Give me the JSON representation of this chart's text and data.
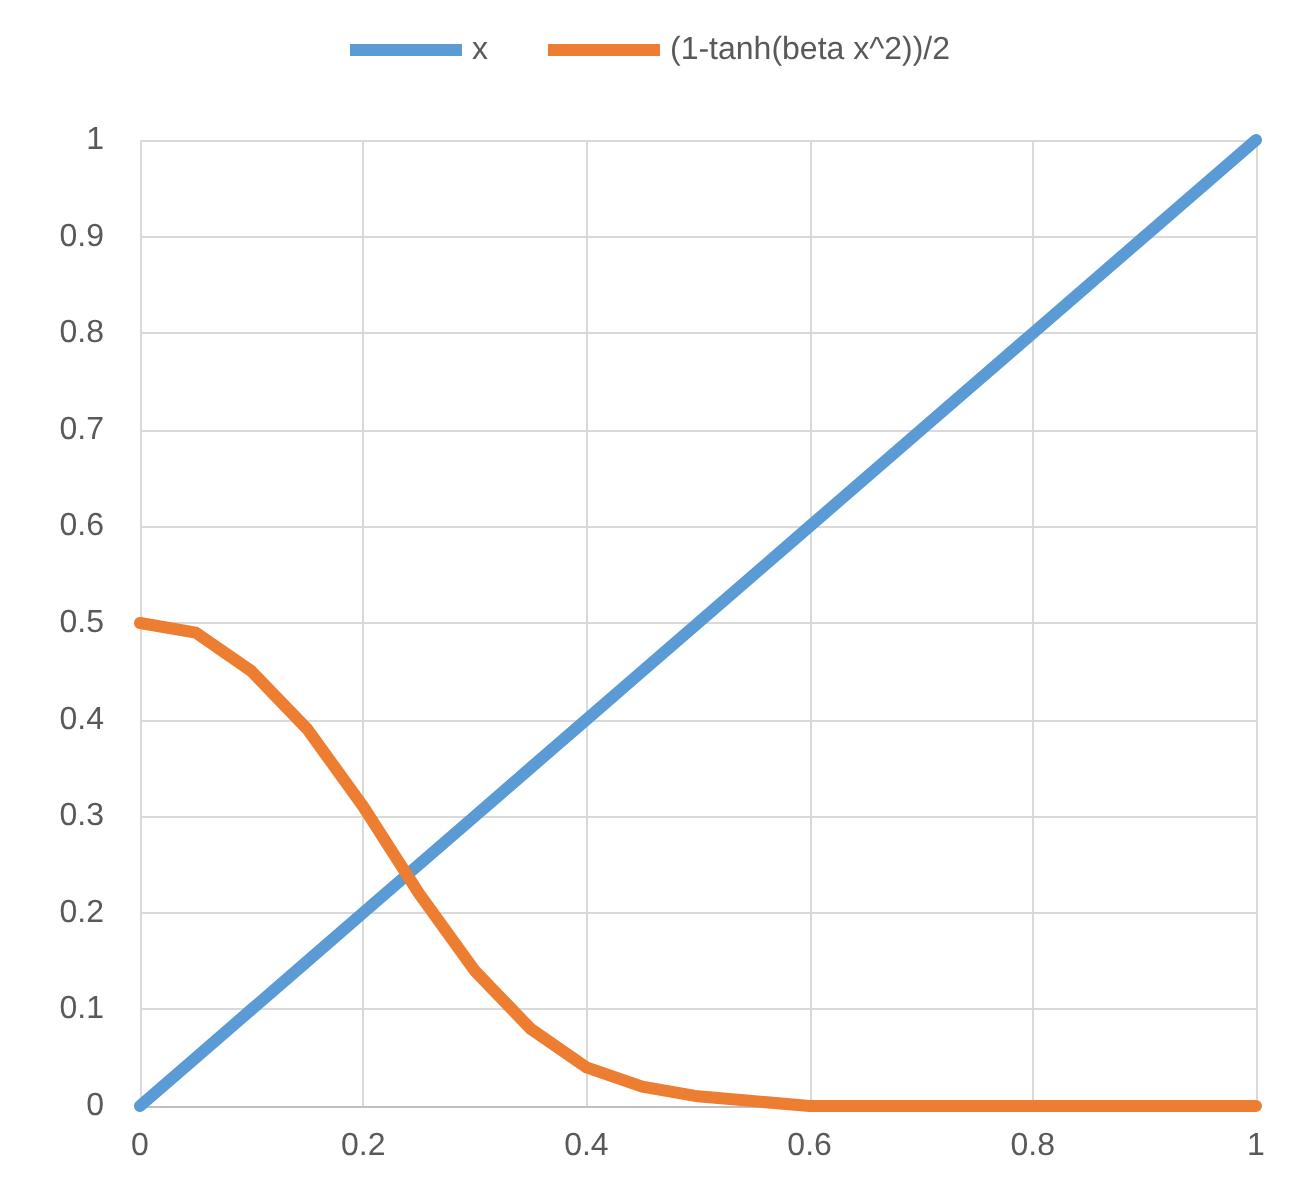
{
  "chart_data": {
    "type": "line",
    "x": [
      0,
      0.05,
      0.1,
      0.15,
      0.2,
      0.25,
      0.3,
      0.35,
      0.4,
      0.45,
      0.5,
      0.6,
      0.7,
      0.8,
      0.9,
      1
    ],
    "series": [
      {
        "name": "x",
        "color": "#5b9bd5",
        "values": [
          0,
          0.05,
          0.1,
          0.15,
          0.2,
          0.25,
          0.3,
          0.35,
          0.4,
          0.45,
          0.5,
          0.6,
          0.7,
          0.8,
          0.9,
          1
        ]
      },
      {
        "name": "(1-tanh(beta x^2))/2",
        "color": "#ed7d31",
        "values": [
          0.5,
          0.49,
          0.45,
          0.39,
          0.31,
          0.22,
          0.14,
          0.08,
          0.04,
          0.02,
          0.01,
          0,
          0,
          0,
          0,
          0
        ]
      }
    ],
    "xlim": [
      0,
      1
    ],
    "xticks": [
      0,
      0.2,
      0.4,
      0.6,
      0.8,
      1
    ],
    "ylim": [
      0,
      1
    ],
    "yticks": [
      0,
      0.1,
      0.2,
      0.3,
      0.4,
      0.5,
      0.6,
      0.7,
      0.8,
      0.9,
      1
    ],
    "grid": true,
    "legend": "top",
    "marker": "none",
    "line_style": "solid"
  }
}
